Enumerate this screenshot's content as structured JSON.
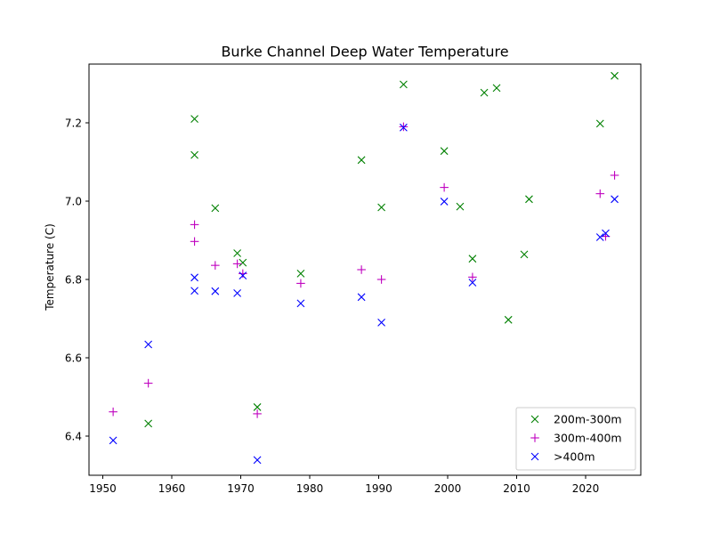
{
  "chart_data": {
    "type": "scatter",
    "title": "Burke Channel Deep Water Temperature",
    "xlabel": "",
    "ylabel": "Temperature (C)",
    "xlim": [
      1948,
      2028
    ],
    "ylim": [
      6.3,
      7.35
    ],
    "xticks": [
      1950,
      1960,
      1970,
      1980,
      1990,
      2000,
      2010,
      2020
    ],
    "yticks": [
      6.4,
      6.6,
      6.8,
      7.0,
      7.2
    ],
    "ytick_labels": [
      "6.4",
      "6.6",
      "6.8",
      "7.0",
      "7.2"
    ],
    "grid": false,
    "legend_position": "lower-right",
    "series": [
      {
        "name": "200m-300m",
        "marker": "x",
        "color": "#008000",
        "points": [
          [
            1956.6,
            6.432
          ],
          [
            1963.3,
            7.21
          ],
          [
            1963.3,
            7.118
          ],
          [
            1966.3,
            6.982
          ],
          [
            1969.5,
            6.867
          ],
          [
            1970.3,
            6.843
          ],
          [
            1972.4,
            6.474
          ],
          [
            1978.7,
            6.815
          ],
          [
            1987.5,
            7.105
          ],
          [
            1990.4,
            6.984
          ],
          [
            1993.6,
            7.298
          ],
          [
            1999.5,
            7.128
          ],
          [
            2001.8,
            6.986
          ],
          [
            2003.6,
            6.853
          ],
          [
            2005.3,
            7.277
          ],
          [
            2007.1,
            7.289
          ],
          [
            2008.8,
            6.697
          ],
          [
            2011.1,
            6.864
          ],
          [
            2011.8,
            7.005
          ],
          [
            2022.1,
            7.198
          ],
          [
            2024.2,
            7.32
          ]
        ]
      },
      {
        "name": "300m-400m",
        "marker": "+",
        "color": "#bf00bf",
        "points": [
          [
            1951.5,
            6.462
          ],
          [
            1956.6,
            6.535
          ],
          [
            1963.3,
            6.94
          ],
          [
            1963.3,
            6.897
          ],
          [
            1966.3,
            6.836
          ],
          [
            1969.5,
            6.84
          ],
          [
            1970.3,
            6.815
          ],
          [
            1972.4,
            6.457
          ],
          [
            1978.7,
            6.79
          ],
          [
            1987.5,
            6.825
          ],
          [
            1990.4,
            6.8
          ],
          [
            1993.6,
            7.19
          ],
          [
            1999.5,
            7.035
          ],
          [
            2003.6,
            6.806
          ],
          [
            2022.1,
            7.019
          ],
          [
            2022.9,
            6.91
          ],
          [
            2024.2,
            7.066
          ]
        ]
      },
      {
        "name": ">400m",
        "marker": "x",
        "color": "#0000ff",
        "points": [
          [
            1951.5,
            6.389
          ],
          [
            1956.6,
            6.634
          ],
          [
            1963.3,
            6.805
          ],
          [
            1963.3,
            6.771
          ],
          [
            1966.3,
            6.77
          ],
          [
            1969.5,
            6.765
          ],
          [
            1970.3,
            6.81
          ],
          [
            1972.4,
            6.339
          ],
          [
            1978.7,
            6.739
          ],
          [
            1987.5,
            6.755
          ],
          [
            1990.4,
            6.69
          ],
          [
            1993.6,
            7.188
          ],
          [
            1999.5,
            6.999
          ],
          [
            2003.6,
            6.792
          ],
          [
            2022.1,
            6.908
          ],
          [
            2022.9,
            6.918
          ],
          [
            2024.2,
            7.005
          ]
        ]
      }
    ]
  }
}
